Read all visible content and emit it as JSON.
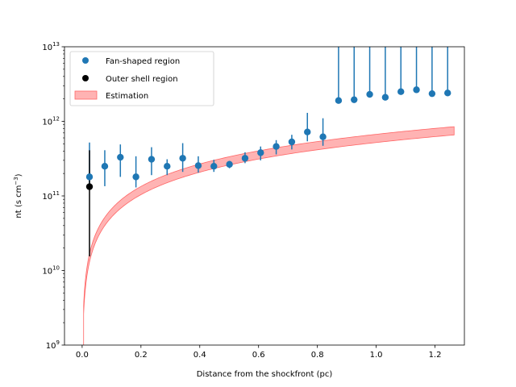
{
  "chart_data": {
    "type": "scatter",
    "xlabel": "Distance from the shockfront (pc)",
    "ylabel_main": "nt (s cm",
    "ylabel_exp": "−3",
    "ylabel_close": ")",
    "xlim": [
      -0.06,
      1.3
    ],
    "ylim_log10": [
      9,
      13
    ],
    "x_ticks": [
      {
        "value": 0.0,
        "label": "0.0"
      },
      {
        "value": 0.2,
        "label": "0.2"
      },
      {
        "value": 0.4,
        "label": "0.4"
      },
      {
        "value": 0.6,
        "label": "0.6"
      },
      {
        "value": 0.8,
        "label": "0.8"
      },
      {
        "value": 1.0,
        "label": "1.0"
      },
      {
        "value": 1.2,
        "label": "1.2"
      }
    ],
    "y_ticks": [
      {
        "exp": 9,
        "base": "10",
        "sup": "9"
      },
      {
        "exp": 10,
        "base": "10",
        "sup": "10"
      },
      {
        "exp": 11,
        "base": "10",
        "sup": "11"
      },
      {
        "exp": 12,
        "base": "10",
        "sup": "12"
      },
      {
        "exp": 13,
        "base": "10",
        "sup": "13"
      }
    ],
    "legend": {
      "position": "upper-left",
      "entries": [
        {
          "label": "Fan-shaped region",
          "kind": "marker",
          "color": "#1f77b4"
        },
        {
          "label": "Outer shell region",
          "kind": "marker",
          "color": "#000000"
        },
        {
          "label": "Estimation",
          "kind": "patch",
          "color": "#ff9999"
        }
      ]
    },
    "series": [
      {
        "name": "Fan-shaped region",
        "color": "#1f77b4",
        "points": [
          {
            "x": 0.025,
            "y": 180000000000.0,
            "ylo": 130000000000.0,
            "yhi": 520000000000.0
          },
          {
            "x": 0.077,
            "y": 250000000000.0,
            "ylo": 135000000000.0,
            "yhi": 410000000000.0
          },
          {
            "x": 0.13,
            "y": 330000000000.0,
            "ylo": 180000000000.0,
            "yhi": 490000000000.0
          },
          {
            "x": 0.183,
            "y": 180000000000.0,
            "ylo": 130000000000.0,
            "yhi": 340000000000.0
          },
          {
            "x": 0.236,
            "y": 310000000000.0,
            "ylo": 190000000000.0,
            "yhi": 450000000000.0
          },
          {
            "x": 0.289,
            "y": 250000000000.0,
            "ylo": 190000000000.0,
            "yhi": 310000000000.0
          },
          {
            "x": 0.342,
            "y": 320000000000.0,
            "ylo": 210000000000.0,
            "yhi": 510000000000.0
          },
          {
            "x": 0.395,
            "y": 255000000000.0,
            "ylo": 205000000000.0,
            "yhi": 340000000000.0
          },
          {
            "x": 0.448,
            "y": 250000000000.0,
            "ylo": 210000000000.0,
            "yhi": 305000000000.0
          },
          {
            "x": 0.501,
            "y": 265000000000.0,
            "ylo": 235000000000.0,
            "yhi": 295000000000.0
          },
          {
            "x": 0.554,
            "y": 320000000000.0,
            "ylo": 275000000000.0,
            "yhi": 385000000000.0
          },
          {
            "x": 0.607,
            "y": 380000000000.0,
            "ylo": 300000000000.0,
            "yhi": 460000000000.0
          },
          {
            "x": 0.66,
            "y": 460000000000.0,
            "ylo": 360000000000.0,
            "yhi": 560000000000.0
          },
          {
            "x": 0.713,
            "y": 530000000000.0,
            "ylo": 420000000000.0,
            "yhi": 660000000000.0
          },
          {
            "x": 0.766,
            "y": 720000000000.0,
            "ylo": 540000000000.0,
            "yhi": 1300000000000.0
          },
          {
            "x": 0.819,
            "y": 620000000000.0,
            "ylo": 470000000000.0,
            "yhi": 1100000000000.0
          },
          {
            "x": 0.872,
            "y": 1900000000000.0,
            "ylo": 1900000000000.0,
            "yhi": 10000000000000.0
          },
          {
            "x": 0.925,
            "y": 1950000000000.0,
            "ylo": 1950000000000.0,
            "yhi": 10000000000000.0
          },
          {
            "x": 0.978,
            "y": 2300000000000.0,
            "ylo": 2300000000000.0,
            "yhi": 10000000000000.0
          },
          {
            "x": 1.031,
            "y": 2100000000000.0,
            "ylo": 2100000000000.0,
            "yhi": 10000000000000.0
          },
          {
            "x": 1.084,
            "y": 2500000000000.0,
            "ylo": 2500000000000.0,
            "yhi": 10000000000000.0
          },
          {
            "x": 1.137,
            "y": 2650000000000.0,
            "ylo": 2650000000000.0,
            "yhi": 10000000000000.0
          },
          {
            "x": 1.19,
            "y": 2350000000000.0,
            "ylo": 2350000000000.0,
            "yhi": 10000000000000.0
          },
          {
            "x": 1.243,
            "y": 2400000000000.0,
            "ylo": 2400000000000.0,
            "yhi": 10000000000000.0
          }
        ]
      },
      {
        "name": "Outer shell region",
        "color": "#000000",
        "points": [
          {
            "x": 0.025,
            "y": 133000000000.0,
            "ylo": 15500000000.0,
            "yhi": 410000000000.0
          }
        ]
      }
    ],
    "band": {
      "name": "Estimation",
      "color": "#ff9999",
      "lower_coef": 520000000000.0,
      "upper_coef": 670000000000.0,
      "x_start": 0.005,
      "x_end": 1.265
    }
  }
}
